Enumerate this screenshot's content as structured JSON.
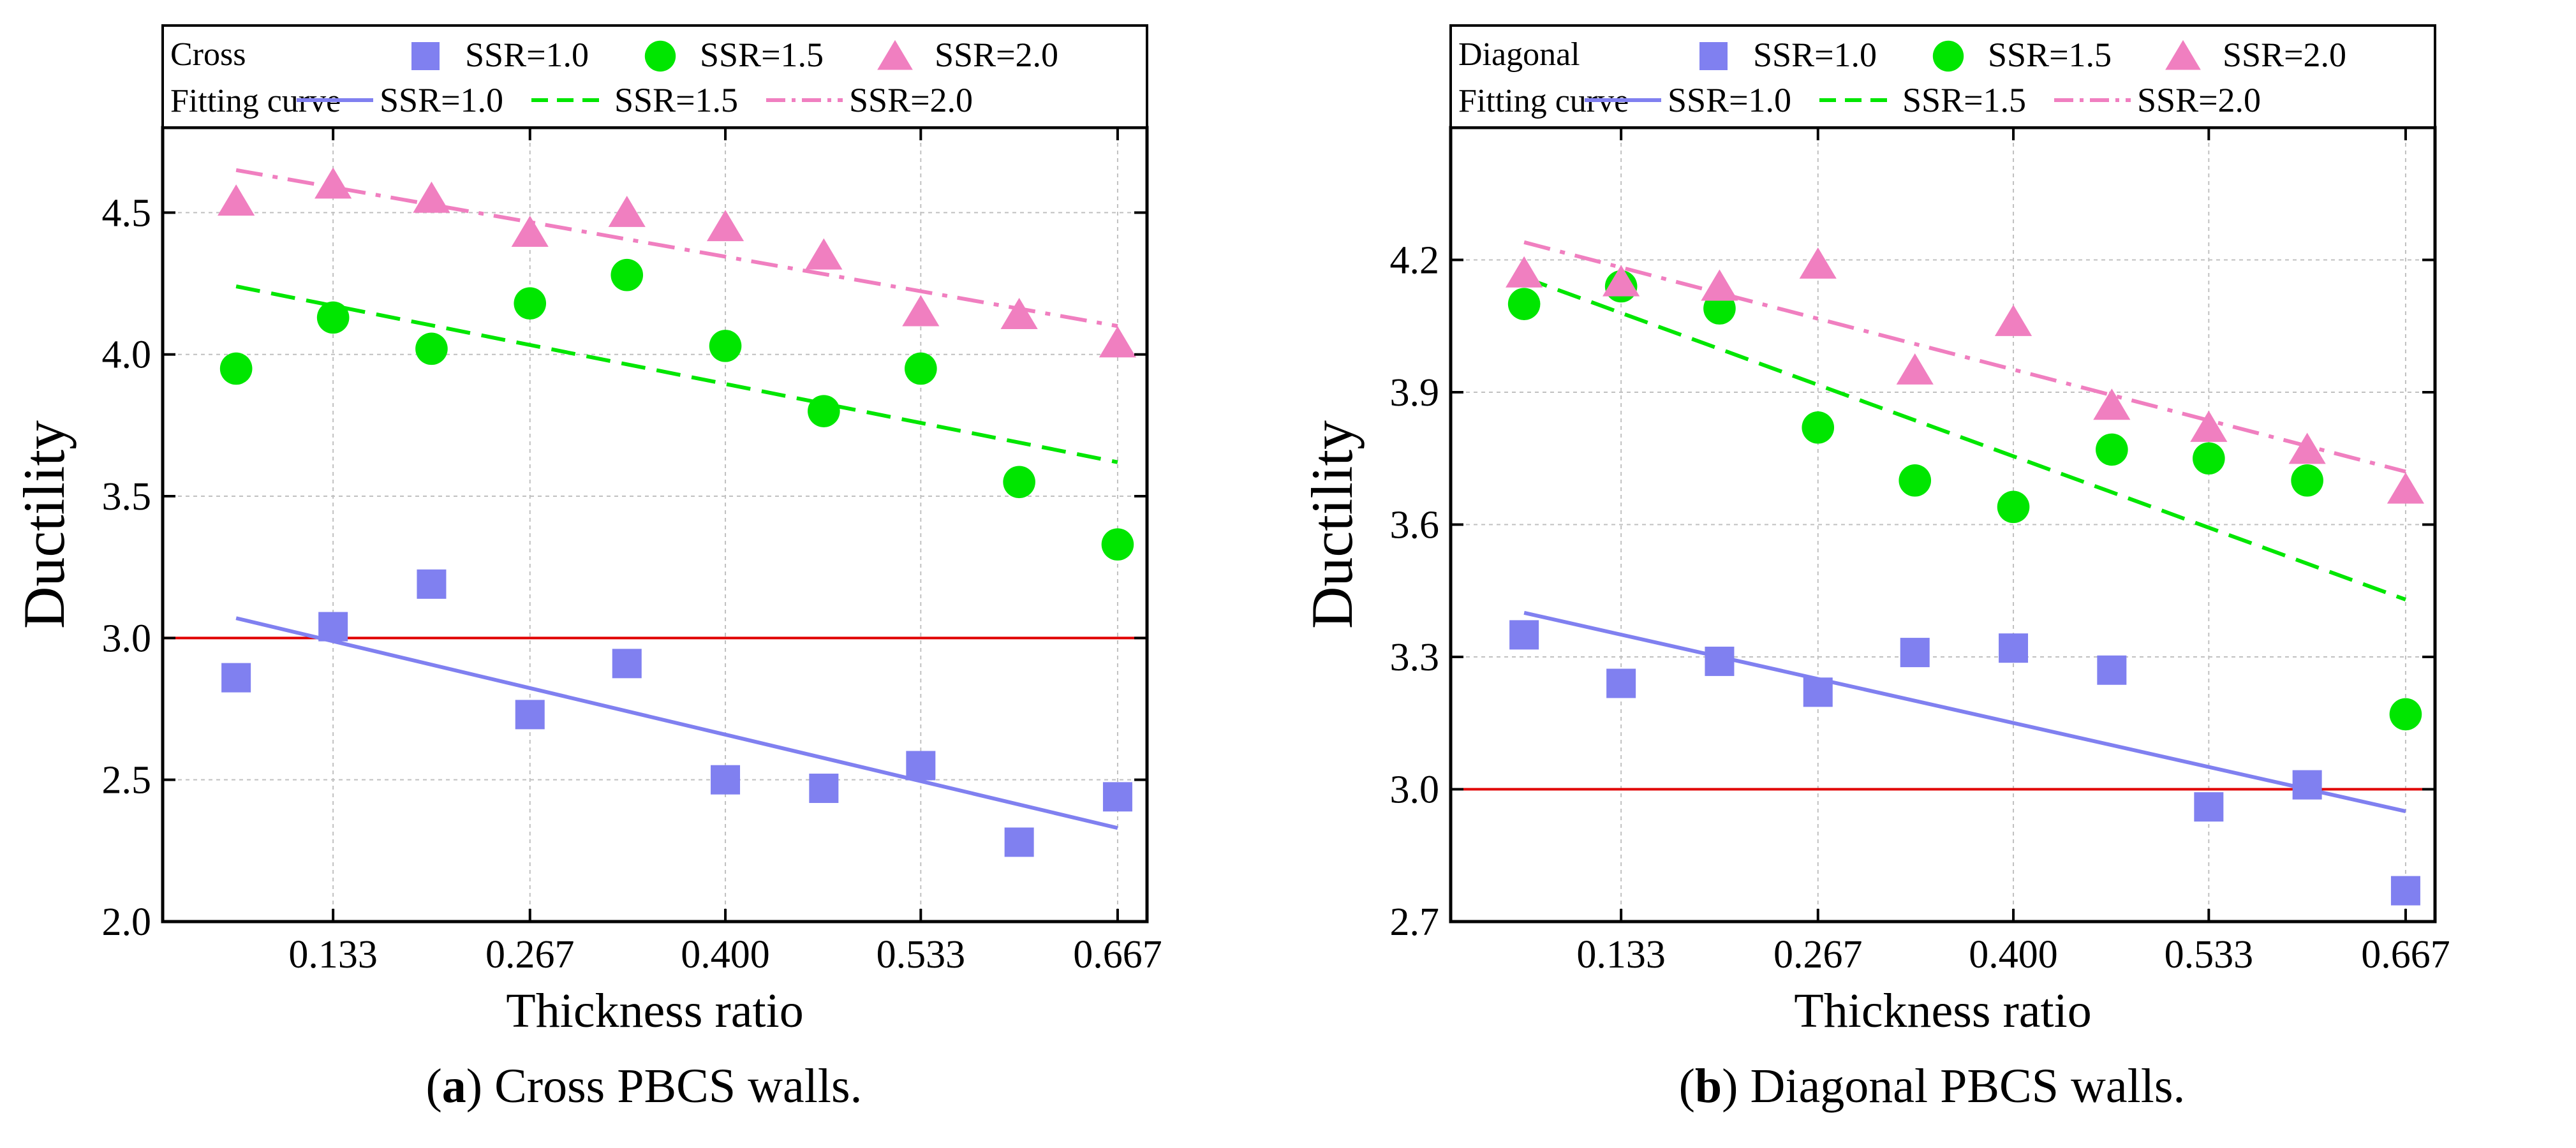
{
  "colors": {
    "ssr10": "#8080f0",
    "ssr15": "#00e600",
    "ssr20": "#f07fc0",
    "threshold": "#e00000",
    "grid": "#c0c0c0"
  },
  "panels": [
    {
      "caption_letter": "a",
      "caption_text": " Cross PBCS walls.",
      "legend": {
        "marker_title": "Cross",
        "curve_title": "Fitting curve",
        "labels": [
          "SSR=1.0",
          "SSR=1.5",
          "SSR=2.0"
        ]
      },
      "chart_data": {
        "type": "scatter",
        "xlabel": "Thickness ratio",
        "ylabel": "Ductility",
        "xlim": [
          0.017,
          0.687
        ],
        "ylim": [
          2.0,
          4.8
        ],
        "xticks": [
          0.133,
          0.267,
          0.4,
          0.533,
          0.667
        ],
        "xtick_labels": [
          "0.133",
          "0.267",
          "0.400",
          "0.533",
          "0.667"
        ],
        "yticks": [
          2.0,
          2.5,
          3.0,
          3.5,
          4.0,
          4.5
        ],
        "ytick_labels": [
          "2.0",
          "2.5",
          "3.0",
          "3.5",
          "4.0",
          "4.5"
        ],
        "threshold": 3.0,
        "x": [
          0.067,
          0.133,
          0.2,
          0.267,
          0.333,
          0.4,
          0.467,
          0.533,
          0.6,
          0.667
        ],
        "series": [
          {
            "name": "SSR=1.0",
            "marker": "square",
            "values": [
              2.86,
              3.04,
              3.19,
              2.73,
              2.91,
              2.5,
              2.47,
              2.55,
              2.28,
              2.44
            ],
            "fit": [
              3.07,
              2.33
            ]
          },
          {
            "name": "SSR=1.5",
            "marker": "circle",
            "values": [
              3.95,
              4.13,
              4.02,
              4.18,
              4.28,
              4.03,
              3.8,
              3.95,
              3.55,
              3.33
            ],
            "fit": [
              4.24,
              3.62
            ]
          },
          {
            "name": "SSR=2.0",
            "marker": "triangle",
            "values": [
              4.54,
              4.6,
              4.55,
              4.43,
              4.5,
              4.45,
              4.35,
              4.15,
              4.14,
              4.04
            ],
            "fit": [
              4.65,
              4.1
            ]
          }
        ]
      }
    },
    {
      "caption_letter": "b",
      "caption_text": " Diagonal PBCS walls.",
      "legend": {
        "marker_title": "Diagonal",
        "curve_title": "Fitting curve",
        "labels": [
          "SSR=1.0",
          "SSR=1.5",
          "SSR=2.0"
        ]
      },
      "chart_data": {
        "type": "scatter",
        "xlabel": "Thickness ratio",
        "ylabel": "Ductility",
        "xlim": [
          0.017,
          0.687
        ],
        "ylim": [
          2.7,
          4.5
        ],
        "xticks": [
          0.133,
          0.267,
          0.4,
          0.533,
          0.667
        ],
        "xtick_labels": [
          "0.133",
          "0.267",
          "0.400",
          "0.533",
          "0.667"
        ],
        "yticks": [
          2.7,
          3.0,
          3.3,
          3.6,
          3.9,
          4.2
        ],
        "ytick_labels": [
          "2.7",
          "3.0",
          "3.3",
          "3.6",
          "3.9",
          "4.2"
        ],
        "threshold": 3.0,
        "x": [
          0.067,
          0.133,
          0.2,
          0.267,
          0.333,
          0.4,
          0.467,
          0.533,
          0.6,
          0.667
        ],
        "series": [
          {
            "name": "SSR=1.0",
            "marker": "square",
            "values": [
              3.35,
              3.24,
              3.29,
              3.22,
              3.31,
              3.32,
              3.27,
              2.96,
              3.01,
              2.77
            ],
            "fit": [
              3.4,
              2.95
            ]
          },
          {
            "name": "SSR=1.5",
            "marker": "circle",
            "values": [
              4.1,
              4.14,
              4.09,
              3.82,
              3.7,
              3.64,
              3.77,
              3.75,
              3.7,
              3.17
            ],
            "fit": [
              4.16,
              3.43
            ]
          },
          {
            "name": "SSR=2.0",
            "marker": "triangle",
            "values": [
              4.17,
              4.15,
              4.14,
              4.19,
              3.95,
              4.06,
              3.87,
              3.82,
              3.77,
              3.68
            ],
            "fit": [
              4.24,
              3.72
            ]
          }
        ]
      }
    }
  ]
}
